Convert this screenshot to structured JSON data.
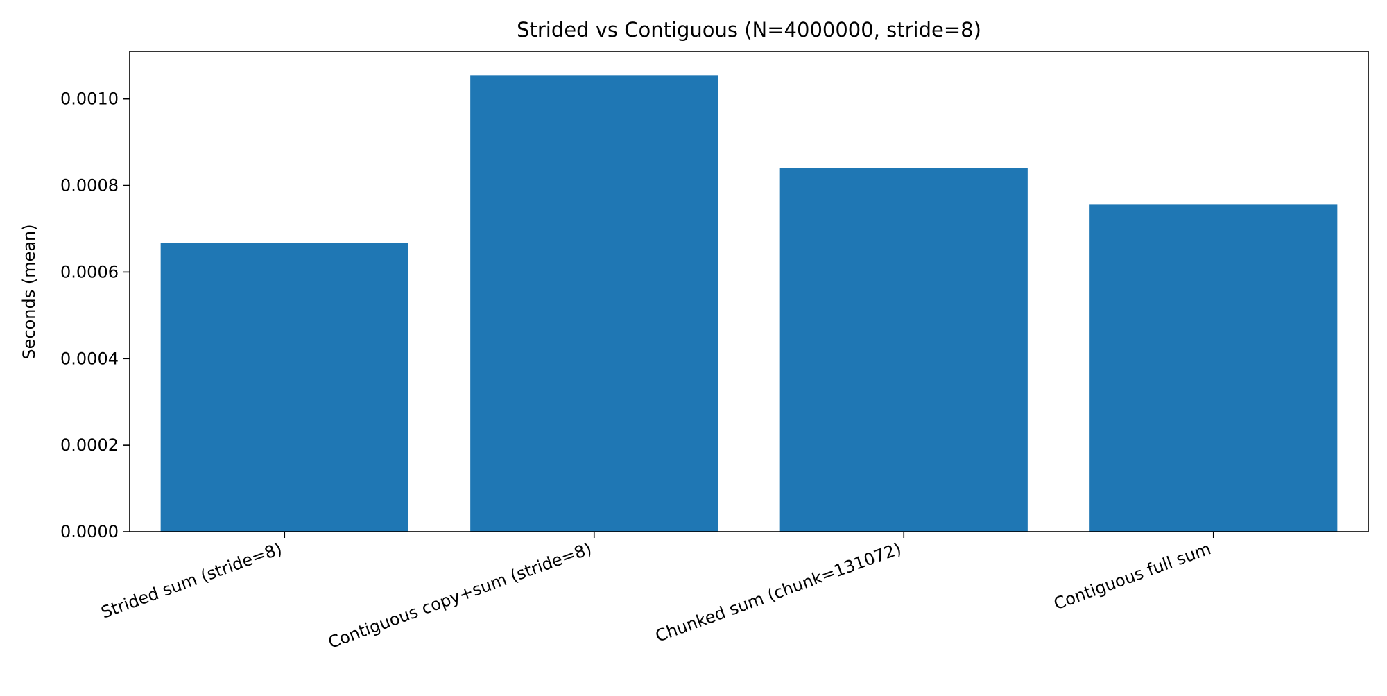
{
  "chart_data": {
    "type": "bar",
    "title": "Strided vs Contiguous (N=4000000, stride=8)",
    "xlabel": "",
    "ylabel": "Seconds (mean)",
    "categories": [
      "Strided sum (stride=8)",
      "Contiguous copy+sum (stride=8)",
      "Chunked sum (chunk=131072)",
      "Contiguous full sum"
    ],
    "values": [
      0.000667,
      0.001055,
      0.00084,
      0.000757
    ],
    "ylim": [
      0,
      0.00111
    ],
    "yticks": [
      0,
      0.0002,
      0.0004,
      0.0006,
      0.0008,
      0.001
    ],
    "ytick_labels": [
      "0.0000",
      "0.0002",
      "0.0004",
      "0.0006",
      "0.0008",
      "0.0010"
    ],
    "colors": {
      "bar": "#1f77b4",
      "axes": "#000000",
      "background": "#ffffff"
    },
    "grid": false,
    "legend": "none"
  }
}
